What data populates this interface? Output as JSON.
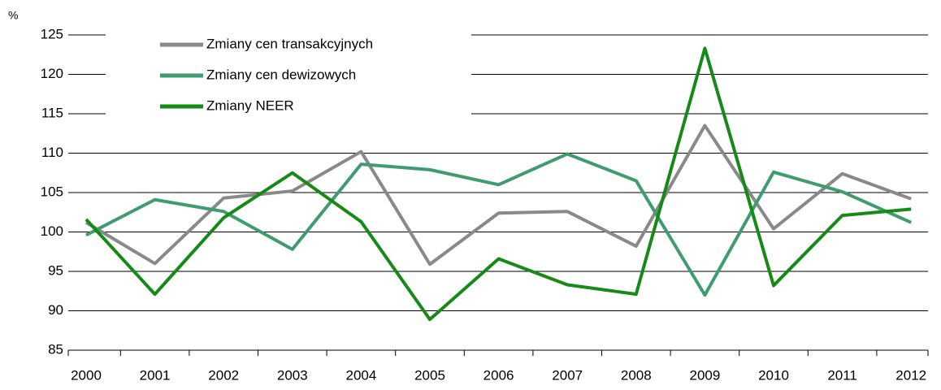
{
  "chart_data": {
    "type": "line",
    "y_label": "%",
    "categories": [
      "2000",
      "2001",
      "2002",
      "2003",
      "2004",
      "2005",
      "2006",
      "2007",
      "2008",
      "2009",
      "2010",
      "2011",
      "2012"
    ],
    "series": [
      {
        "name": "Zmiany cen transakcyjnych",
        "color": "#898989",
        "values": [
          101.2,
          96.0,
          104.3,
          105.2,
          110.2,
          95.9,
          102.4,
          102.6,
          98.2,
          113.5,
          100.4,
          107.4,
          104.2
        ]
      },
      {
        "name": "Zmiany cen dewizowych",
        "color": "#3f9c6e",
        "values": [
          99.6,
          104.1,
          102.6,
          97.8,
          108.6,
          107.9,
          106.0,
          109.9,
          106.5,
          92.0,
          107.6,
          105.1,
          101.2
        ]
      },
      {
        "name": "Zmiany NEER",
        "color": "#168a16",
        "values": [
          101.6,
          92.1,
          101.8,
          107.5,
          101.3,
          88.9,
          96.6,
          93.3,
          92.1,
          123.3,
          93.2,
          102.1,
          102.9
        ]
      }
    ],
    "ylim": [
      85,
      125
    ],
    "yticks": [
      85,
      90,
      95,
      100,
      105,
      110,
      115,
      120,
      125
    ],
    "grid": true,
    "legend": "top-left"
  }
}
